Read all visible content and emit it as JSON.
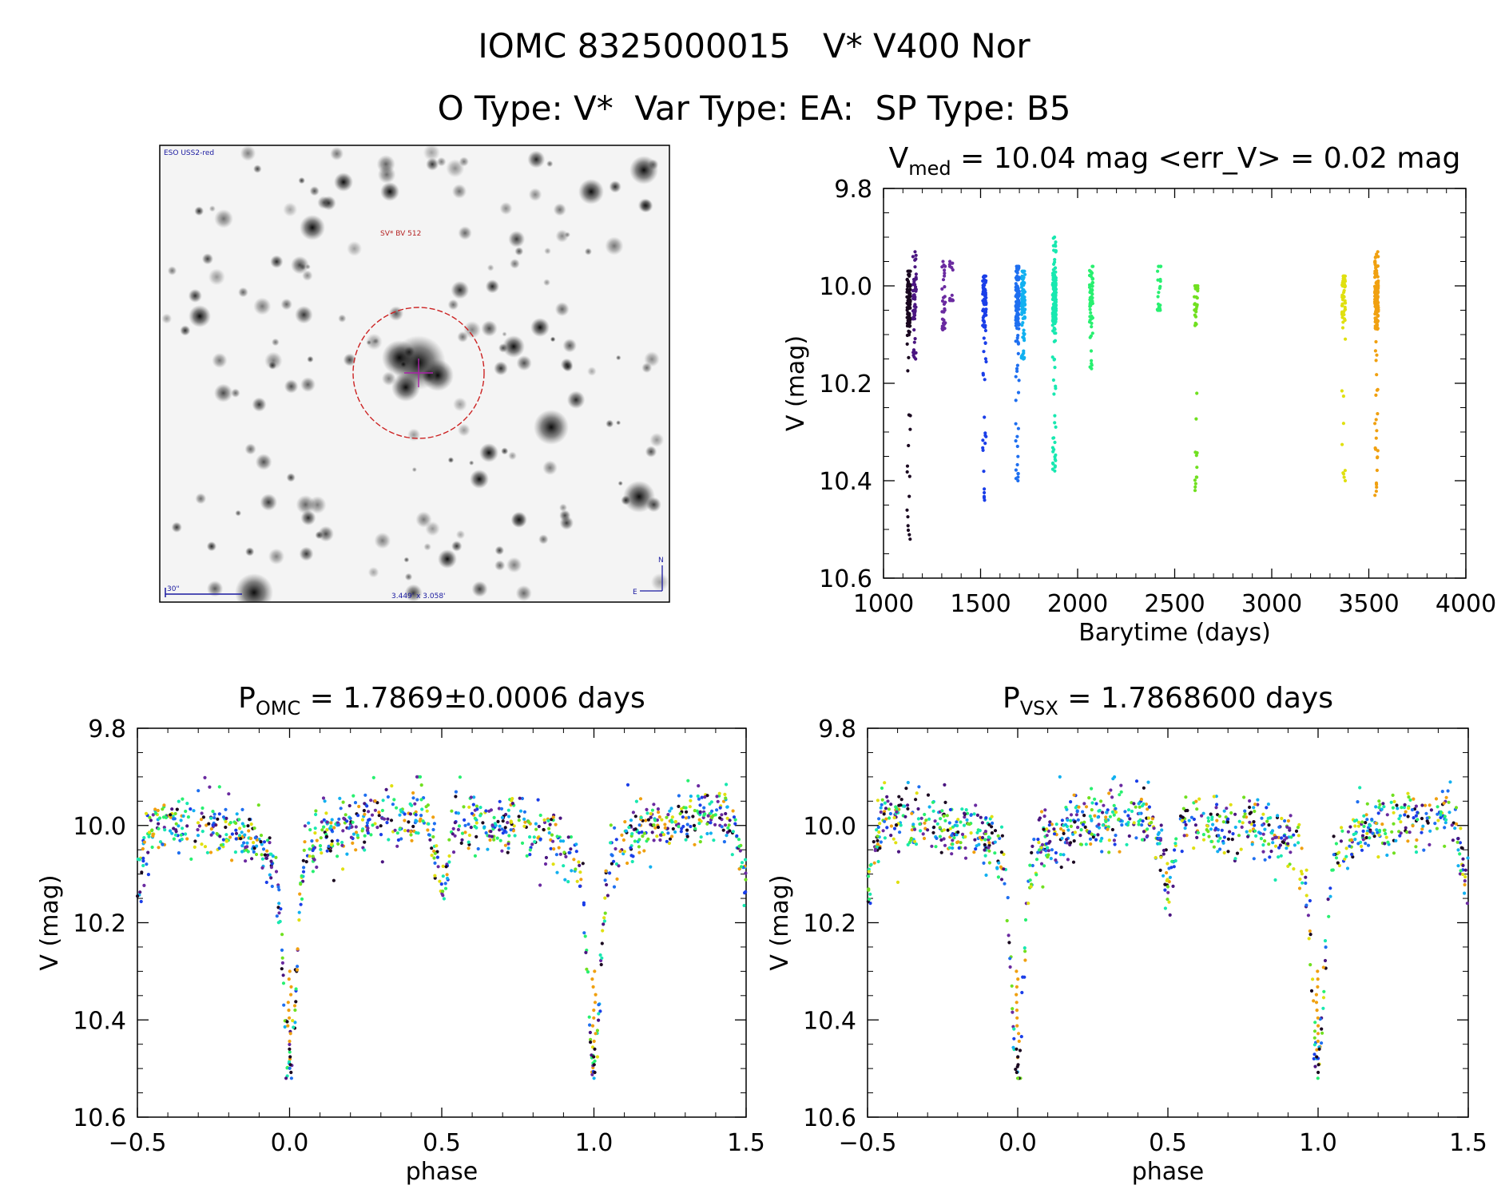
{
  "header": {
    "title_line1": "IOMC 8325000015   V* V400 Nor",
    "title_line2": "O Type: V*  Var Type: EA:  SP Type: B5"
  },
  "finder_image": {
    "survey_label": "ESO USS2-red",
    "target_label": "SV* BV 512",
    "scale_label": "30\"",
    "fov_label": "3.449' x 3.058'",
    "north_label": "N",
    "east_label": "E"
  },
  "colors": {
    "target_circle": "#cc2222",
    "crosshair": "#aa22aa",
    "annotation_blue": "#1a1aa0",
    "annotation_red": "#b42222",
    "palette": [
      "#1a0820",
      "#4a1580",
      "#6a2aa0",
      "#1a3ee8",
      "#1e6ff0",
      "#12b0f0",
      "#18e8b0",
      "#28f070",
      "#70e020",
      "#e0e010",
      "#f0a010"
    ]
  },
  "chart_data": [
    {
      "id": "lightcurve",
      "type": "scatter",
      "title_main": "V",
      "title_sub": "med",
      "title_rest": " = 10.04 mag <err_V> = 0.02 mag",
      "xlabel": "Barytime (days)",
      "ylabel": "V (mag)",
      "xlim": [
        1000,
        4000
      ],
      "ylim": [
        10.6,
        9.8
      ],
      "y_inverted": true,
      "xticks": [
        1000,
        1500,
        2000,
        2500,
        3000,
        3500,
        4000
      ],
      "yticks": [
        9.8,
        10.0,
        10.2,
        10.4,
        10.6
      ],
      "xtick_labels": [
        "1000",
        "1500",
        "2000",
        "2500",
        "3000",
        "3500",
        "4000"
      ],
      "ytick_labels": [
        "9.8",
        "10.0",
        "10.2",
        "10.4",
        "10.6"
      ],
      "groups": [
        {
          "t": 1130,
          "color_index": 0,
          "v_min": 9.97,
          "v_max": 10.52,
          "n": 90
        },
        {
          "t": 1160,
          "color_index": 1,
          "v_min": 9.93,
          "v_max": 10.15,
          "n": 60
        },
        {
          "t": 1310,
          "color_index": 2,
          "v_min": 9.95,
          "v_max": 10.09,
          "n": 30
        },
        {
          "t": 1350,
          "color_index": 2,
          "v_min": 9.95,
          "v_max": 10.03,
          "n": 14
        },
        {
          "t": 1520,
          "color_index": 3,
          "v_min": 9.98,
          "v_max": 10.44,
          "n": 95
        },
        {
          "t": 1690,
          "color_index": 4,
          "v_min": 9.96,
          "v_max": 10.4,
          "n": 130
        },
        {
          "t": 1720,
          "color_index": 5,
          "v_min": 9.97,
          "v_max": 10.15,
          "n": 90
        },
        {
          "t": 1880,
          "color_index": 6,
          "v_min": 9.9,
          "v_max": 10.38,
          "n": 190
        },
        {
          "t": 2070,
          "color_index": 7,
          "v_min": 9.96,
          "v_max": 10.17,
          "n": 60
        },
        {
          "t": 2420,
          "color_index": 7,
          "v_min": 9.96,
          "v_max": 10.05,
          "n": 25
        },
        {
          "t": 2610,
          "color_index": 8,
          "v_min": 10.0,
          "v_max": 10.42,
          "n": 40
        },
        {
          "t": 3370,
          "color_index": 9,
          "v_min": 9.98,
          "v_max": 10.4,
          "n": 60
        },
        {
          "t": 3540,
          "color_index": 10,
          "v_min": 9.93,
          "v_max": 10.43,
          "n": 170
        }
      ]
    },
    {
      "id": "phase_omc",
      "type": "scatter",
      "title_main": "P",
      "title_sub": "OMC",
      "title_rest": " = 1.7869±0.0006 days",
      "xlabel": "phase",
      "ylabel": "V (mag)",
      "xlim": [
        -0.5,
        1.5
      ],
      "ylim": [
        10.6,
        9.8
      ],
      "y_inverted": true,
      "xticks": [
        -0.5,
        0.0,
        0.5,
        1.0,
        1.5
      ],
      "yticks": [
        9.8,
        10.0,
        10.2,
        10.4,
        10.6
      ],
      "xtick_labels": [
        "−0.5",
        "0.0",
        "0.5",
        "1.0",
        "1.5"
      ],
      "ytick_labels": [
        "9.8",
        "10.0",
        "10.2",
        "10.4",
        "10.6"
      ],
      "curve": {
        "baseline": 10.0,
        "primary_min_depth": 0.42,
        "primary_min_phase": 0.0,
        "secondary_min_depth": 0.14,
        "secondary_min_phase": 0.5,
        "scatter": 0.03
      }
    },
    {
      "id": "phase_vsx",
      "type": "scatter",
      "title_main": "P",
      "title_sub": "VSX",
      "title_rest": " = 1.7868600 days",
      "xlabel": "phase",
      "ylabel": "V (mag)",
      "xlim": [
        -0.5,
        1.5
      ],
      "ylim": [
        10.6,
        9.8
      ],
      "y_inverted": true,
      "xticks": [
        -0.5,
        0.0,
        0.5,
        1.0,
        1.5
      ],
      "yticks": [
        9.8,
        10.0,
        10.2,
        10.4,
        10.6
      ],
      "xtick_labels": [
        "−0.5",
        "0.0",
        "0.5",
        "1.0",
        "1.5"
      ],
      "ytick_labels": [
        "9.8",
        "10.0",
        "10.2",
        "10.4",
        "10.6"
      ],
      "curve": {
        "baseline": 10.0,
        "primary_min_depth": 0.42,
        "primary_min_phase": 0.0,
        "secondary_min_depth": 0.14,
        "secondary_min_phase": 0.5,
        "scatter": 0.03
      }
    }
  ]
}
